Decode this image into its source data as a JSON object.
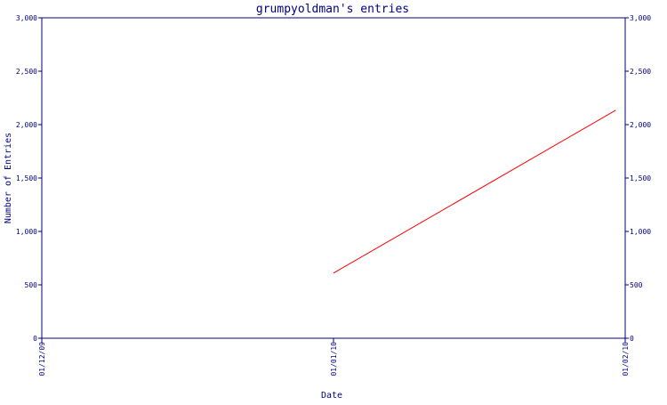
{
  "chart_data": {
    "type": "line",
    "title": "grumpyoldman's entries",
    "xlabel": "Date",
    "ylabel": "Number of Entries",
    "x_categories": [
      "01/12/09",
      "01/01/10",
      "01/02/10"
    ],
    "y_ticks": [
      0,
      500,
      1000,
      1500,
      2000,
      2500,
      3000
    ],
    "y_tick_labels": [
      "0",
      "500",
      "1,000",
      "1,500",
      "2,000",
      "2,500",
      "3,000"
    ],
    "ylim": [
      0,
      3000
    ],
    "grid": false,
    "right_axis": true,
    "series": [
      {
        "color": "#ff0000",
        "points": [
          {
            "x": "01/01/10",
            "y": 610
          },
          {
            "x": "2010-01-31",
            "y": 2135
          }
        ]
      }
    ],
    "colors": {
      "axis": "#00007f",
      "text": "#00007f",
      "line": "#ff0000",
      "background": "#ffffff"
    }
  }
}
